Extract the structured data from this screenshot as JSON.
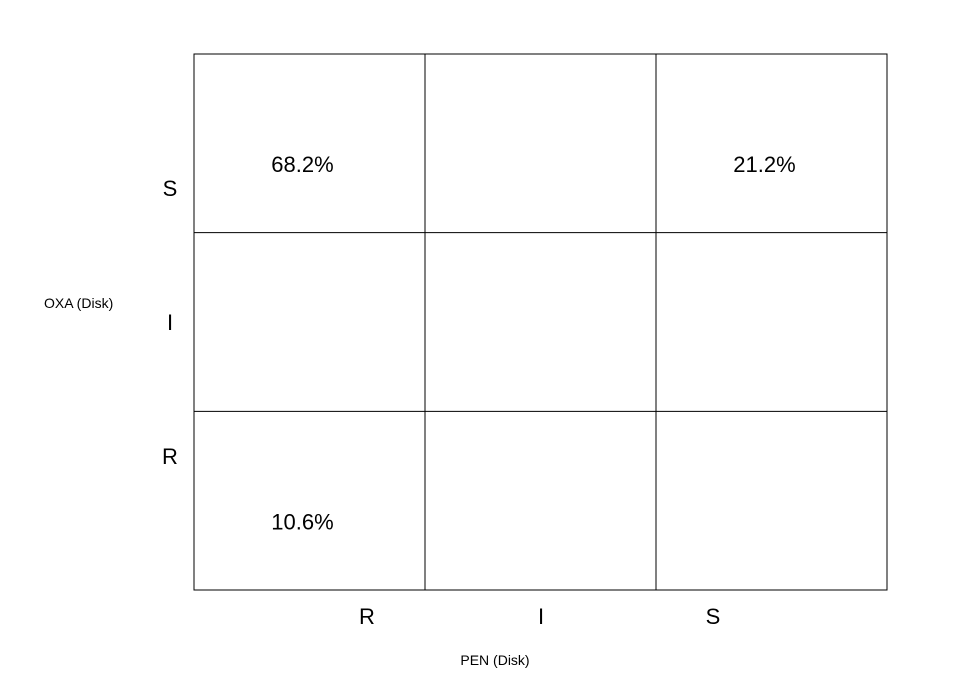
{
  "chart_data": {
    "type": "heatmap",
    "title": "",
    "xlabel": "PEN (Disk)",
    "ylabel": "OXA (Disk)",
    "x_categories": [
      "R",
      "I",
      "S"
    ],
    "y_categories": [
      "S",
      "I",
      "R"
    ],
    "grid": true,
    "cells": [
      [
        "68.2%",
        "",
        "21.2%"
      ],
      [
        "",
        "",
        ""
      ],
      [
        "10.6%",
        "",
        ""
      ]
    ],
    "values": [
      [
        68.2,
        null,
        21.2
      ],
      [
        null,
        null,
        null
      ],
      [
        10.6,
        null,
        null
      ]
    ],
    "colors": {
      "background": "#ffffff",
      "gridline": "#000000",
      "text": "#000000"
    }
  }
}
